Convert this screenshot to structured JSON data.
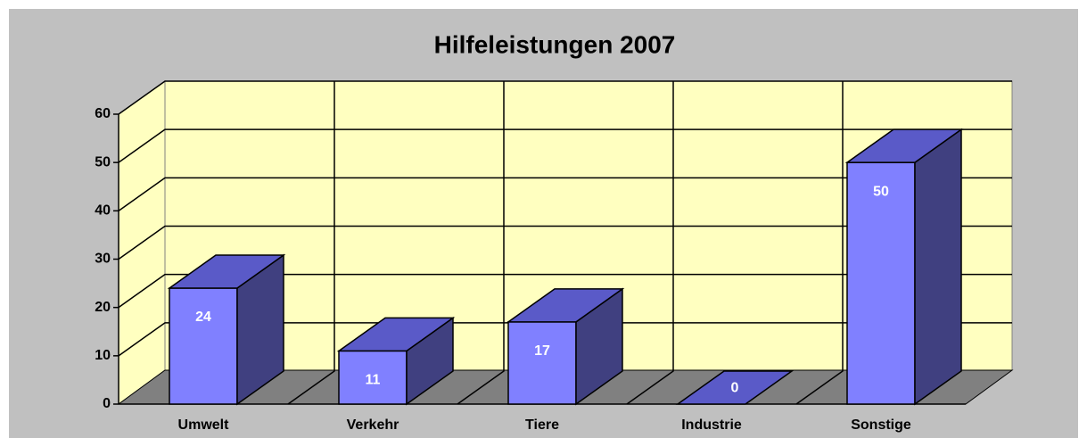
{
  "chart_data": {
    "type": "bar3d",
    "title": "Hilfeleistungen 2007",
    "categories": [
      "Umwelt",
      "Verkehr",
      "Tiere",
      "Industrie",
      "Sonstige"
    ],
    "values": [
      24,
      11,
      17,
      0,
      50
    ],
    "color": "#8080ff",
    "ylim": [
      0,
      60
    ],
    "yticks": [
      0,
      10,
      20,
      30,
      40,
      50,
      60
    ],
    "grid": true
  }
}
